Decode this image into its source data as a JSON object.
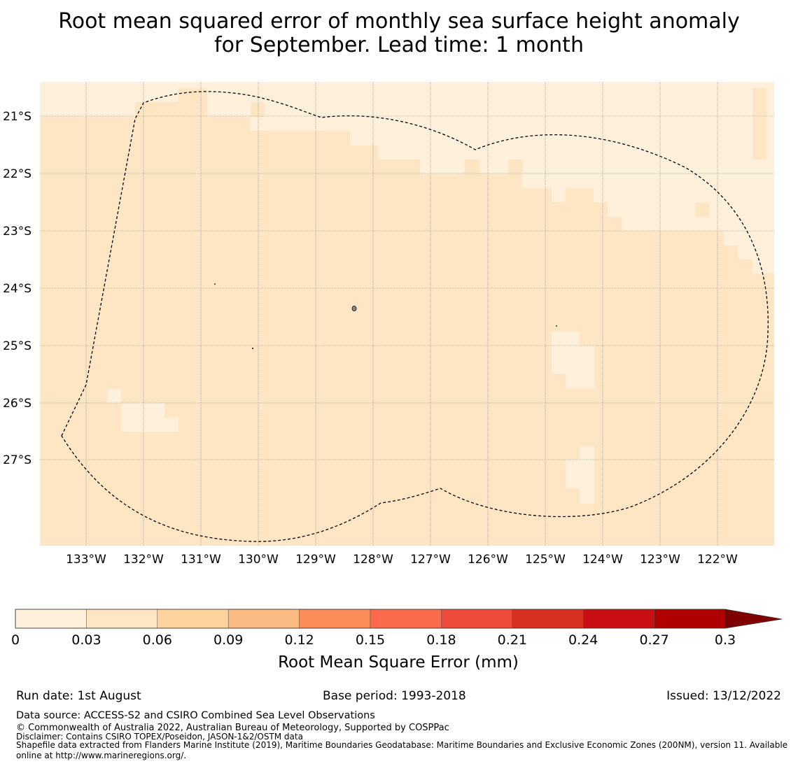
{
  "title": {
    "line1": "Root mean squared error of monthly sea surface height anomaly",
    "line2": "for September. Lead time: 1 month"
  },
  "map": {
    "lat_ticks": [
      "21°S",
      "22°S",
      "23°S",
      "24°S",
      "25°S",
      "26°S",
      "27°S"
    ],
    "lon_ticks": [
      "133°W",
      "132°W",
      "131°W",
      "130°W",
      "129°W",
      "128°W",
      "127°W",
      "126°W",
      "125°W",
      "124°W",
      "123°W",
      "122°W"
    ],
    "colors": {
      "bin_0_003": "#fff0dc",
      "bin_003_006": "#fee6c5",
      "boundary": "#000000",
      "grid": "#808080"
    }
  },
  "colorbar": {
    "ticks": [
      "0",
      "0.03",
      "0.06",
      "0.09",
      "0.12",
      "0.15",
      "0.18",
      "0.21",
      "0.24",
      "0.27",
      "0.3"
    ],
    "colors": [
      "#fff0dc",
      "#fee6c5",
      "#fdd49e",
      "#fdbb84",
      "#fc8d59",
      "#fb6a4a",
      "#ef4b3b",
      "#d7301f",
      "#c90e16",
      "#b00000",
      "#7f0000"
    ],
    "label": "Root Mean Square Error (mm)"
  },
  "footer": {
    "run_date": "Run date: 1st August",
    "base_period": "Base period: 1993-2018",
    "issued": "Issued: 13/12/2022",
    "data_source": "Data source: ACCESS-S2 and CSIRO Combined Sea Level Observations",
    "copyright": "© Commonwealth of Australia 2022, Australian Bureau of Meteorology, Supported by COSPPac",
    "disclaimer": "Disclaimer: Contains CSIRO TOPEX/Poseidon, JASON-1&2/OSTM data",
    "shapefile_line1": "Shapefile data extracted from Flanders Marine Institute (2019), Maritime Boundaries Geodatabase: Maritime Boundaries and Exclusive Economic Zones (200NM), version 11. Available",
    "shapefile_line2": "online at http://www.marineregions.org/."
  }
}
